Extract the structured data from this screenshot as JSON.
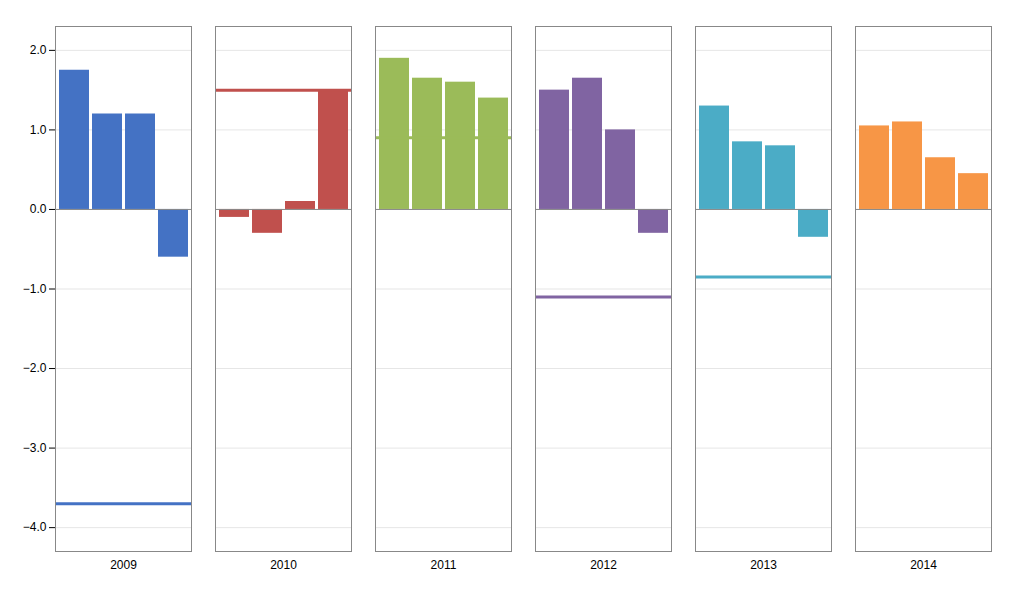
{
  "chart_data": {
    "type": "bar",
    "categories": [
      "2009",
      "2010",
      "2011",
      "2012",
      "2013",
      "2014"
    ],
    "colors": [
      "#4472C4",
      "#C0504D",
      "#9BBB59",
      "#8064A2",
      "#4BACC6",
      "#F79646"
    ],
    "values": [
      [
        1.75,
        1.2,
        1.2,
        -0.6
      ],
      [
        -0.1,
        -0.3,
        0.1,
        1.5
      ],
      [
        1.9,
        1.65,
        1.6,
        1.4
      ],
      [
        1.5,
        1.65,
        1.0,
        -0.3
      ],
      [
        1.3,
        0.85,
        0.8,
        -0.35
      ],
      [
        1.05,
        1.1,
        0.65,
        0.45
      ]
    ],
    "line_values": [
      -3.7,
      1.5,
      0.9,
      -1.1,
      -0.85,
      null
    ],
    "ylim": [
      -4.3,
      2.3
    ],
    "yticks": [
      -4,
      -3,
      -2,
      -1,
      0,
      1,
      2
    ],
    "grid": true
  }
}
